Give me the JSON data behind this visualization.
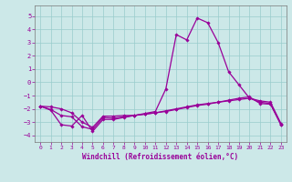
{
  "xlabel": "Windchill (Refroidissement éolien,°C)",
  "xlim": [
    -0.5,
    23.5
  ],
  "ylim": [
    -4.5,
    5.8
  ],
  "xticks": [
    0,
    1,
    2,
    3,
    4,
    5,
    6,
    7,
    8,
    9,
    10,
    11,
    12,
    13,
    14,
    15,
    16,
    17,
    18,
    19,
    20,
    21,
    22,
    23
  ],
  "yticks": [
    -4,
    -3,
    -2,
    -1,
    0,
    1,
    2,
    3,
    4,
    5
  ],
  "bg_color": "#cce8e8",
  "grid_color": "#99cccc",
  "line_color": "#990099",
  "line1_x": [
    0,
    1,
    2,
    3,
    4,
    5,
    6,
    7,
    8,
    9,
    10,
    11,
    12,
    13,
    14,
    15,
    16,
    17,
    18,
    19,
    20,
    21,
    22,
    23
  ],
  "line1_y": [
    -1.8,
    -2.1,
    -3.2,
    -3.3,
    -2.5,
    -3.7,
    -2.8,
    -2.8,
    -2.65,
    -2.5,
    -2.35,
    -2.2,
    -0.5,
    3.6,
    3.2,
    4.85,
    4.5,
    3.0,
    0.8,
    -0.2,
    -1.2,
    -1.5,
    -1.6,
    -3.2
  ],
  "line2_x": [
    0,
    1,
    2,
    3,
    4,
    5,
    6,
    7,
    8,
    9,
    10,
    11,
    12,
    13,
    14,
    15,
    16,
    17,
    18,
    19,
    20,
    21,
    22,
    23
  ],
  "line2_y": [
    -1.8,
    -2.05,
    -2.5,
    -2.6,
    -3.35,
    -3.55,
    -2.65,
    -2.7,
    -2.6,
    -2.5,
    -2.4,
    -2.3,
    -2.2,
    -2.05,
    -1.9,
    -1.75,
    -1.65,
    -1.5,
    -1.35,
    -1.2,
    -1.1,
    -1.6,
    -1.65,
    -3.2
  ],
  "line3_x": [
    0,
    1,
    2,
    3,
    4,
    5,
    6,
    7,
    8,
    9,
    10,
    11,
    12,
    13,
    14,
    15,
    16,
    17,
    18,
    19,
    20,
    21,
    22,
    23
  ],
  "line3_y": [
    -1.8,
    -1.85,
    -2.0,
    -2.3,
    -3.0,
    -3.4,
    -2.55,
    -2.55,
    -2.5,
    -2.5,
    -2.4,
    -2.3,
    -2.15,
    -2.0,
    -1.85,
    -1.7,
    -1.6,
    -1.5,
    -1.4,
    -1.3,
    -1.2,
    -1.4,
    -1.5,
    -3.1
  ]
}
